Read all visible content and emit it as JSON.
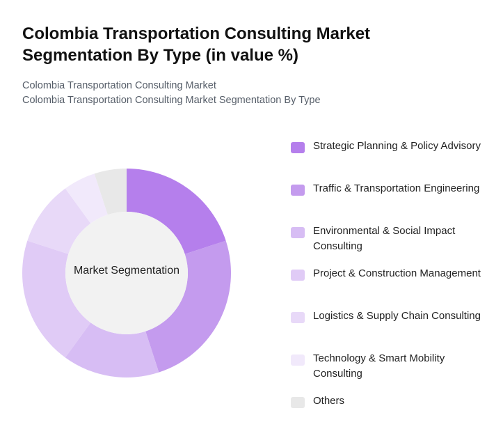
{
  "title": "Colombia Transportation Consulting Market Segmentation By Type (in value %)",
  "subtitle_lines": [
    "Colombia Transportation Consulting Market",
    "Colombia Transportation Consulting Market Segmentation By Type"
  ],
  "chart_data": {
    "type": "pie",
    "donut": true,
    "center_label": "Market Segmentation",
    "categories": [
      "Strategic Planning & Policy Advisory",
      "Traffic & Transportation Engineering",
      "Environmental & Social Impact Consulting",
      "Project & Construction Management",
      "Logistics & Supply Chain Consulting",
      "Technology & Smart Mobility Consulting",
      "Others"
    ],
    "values": [
      20,
      25,
      15,
      20,
      10,
      5,
      5
    ],
    "colors": [
      "#b57fec",
      "#c49bee",
      "#d7bdf4",
      "#e0cbf6",
      "#e8d9f8",
      "#f1e9fb",
      "#e8e8e8"
    ],
    "legend_position": "right"
  }
}
